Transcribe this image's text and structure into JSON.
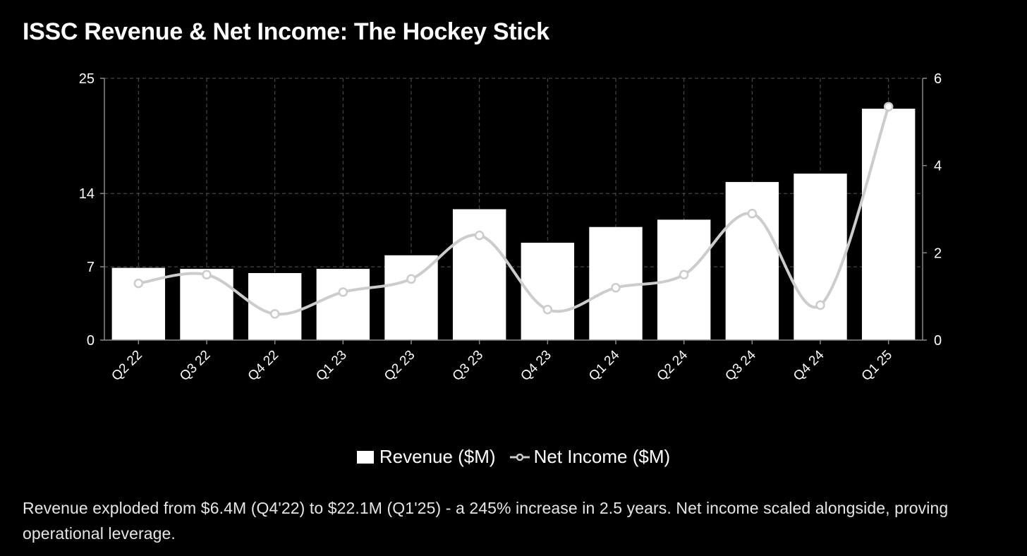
{
  "title": "ISSC Revenue & Net Income: The Hockey Stick",
  "chart_data": {
    "type": "bar",
    "title": "ISSC Revenue & Net Income: The Hockey Stick",
    "categories": [
      "Q2 22",
      "Q3 22",
      "Q4 22",
      "Q1 23",
      "Q2 23",
      "Q3 23",
      "Q4 23",
      "Q1 24",
      "Q2 24",
      "Q3 24",
      "Q4 24",
      "Q1 25"
    ],
    "series": [
      {
        "name": "Revenue ($M)",
        "type": "bar",
        "axis": "left",
        "values": [
          6.9,
          6.8,
          6.4,
          6.8,
          8.1,
          12.5,
          9.3,
          10.8,
          11.5,
          15.1,
          15.9,
          22.1
        ]
      },
      {
        "name": "Net Income ($M)",
        "type": "line",
        "axis": "right",
        "values": [
          1.3,
          1.5,
          0.6,
          1.1,
          1.4,
          2.4,
          0.7,
          1.2,
          1.5,
          2.9,
          0.8,
          5.35
        ]
      }
    ],
    "y_left": {
      "ticks": [
        0,
        7,
        14,
        25
      ],
      "range": [
        0,
        25
      ]
    },
    "y_right": {
      "ticks": [
        0,
        2,
        4,
        6
      ],
      "range": [
        0,
        6
      ]
    },
    "grid": true,
    "legend": "bottom",
    "colors": {
      "bar": "#ffffff",
      "line": "#cccccc",
      "grid": "#555555",
      "axis": "#888888"
    }
  },
  "legend": {
    "revenue_label": "Revenue ($M)",
    "net_income_label": "Net Income ($M)"
  },
  "caption": "Revenue exploded from $6.4M (Q4'22) to $22.1M (Q1'25) - a 245% increase in 2.5 years. Net income scaled alongside, proving operational leverage."
}
